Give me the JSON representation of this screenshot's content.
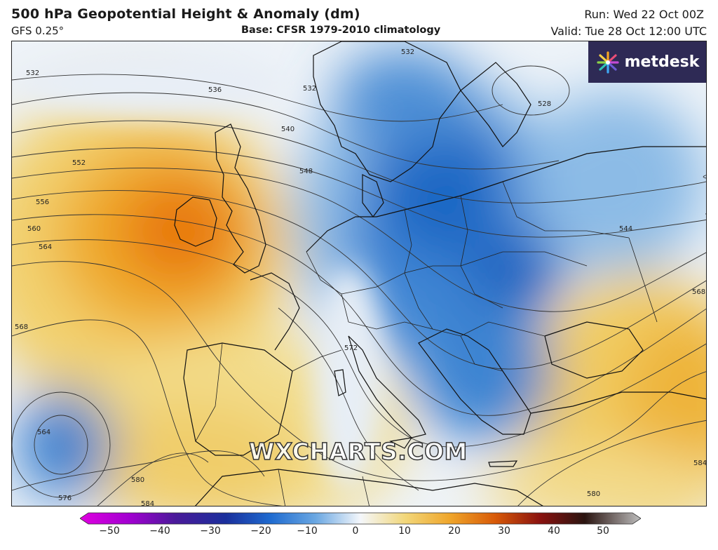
{
  "header": {
    "title": "500 hPa Geopotential Height & Anomaly (dm)",
    "model": "GFS 0.25°",
    "base": "Base: CFSR 1979-2010 climatology",
    "run": "Run: Wed 22 Oct 00Z",
    "valid": "Valid: Tue 28 Oct 12:00 UTC"
  },
  "logo": {
    "text": "metdesk",
    "icon": "burst-logo-icon",
    "color": "#2e2a55"
  },
  "watermark": "WXCHARTS.COM",
  "contour_labels": [
    "532",
    "536",
    "532",
    "532",
    "528",
    "540",
    "548",
    "552",
    "556",
    "560",
    "564",
    "568",
    "572",
    "544",
    "568",
    "564",
    "580",
    "576",
    "584",
    "580",
    "584"
  ],
  "colorbar": {
    "ticks": [
      "−50",
      "−40",
      "−30",
      "−20",
      "−10",
      "0",
      "10",
      "20",
      "30",
      "40",
      "50"
    ],
    "range": [
      -50,
      50
    ],
    "colors": [
      "#e000e0",
      "#7a00a8",
      "#2a1f8f",
      "#1848b8",
      "#1f7fd8",
      "#7fb6e6",
      "#f4f7fb",
      "#f2d77a",
      "#ee9d1b",
      "#d24a05",
      "#7a0c0c",
      "#2a1410",
      "#b8b8b8"
    ]
  }
}
